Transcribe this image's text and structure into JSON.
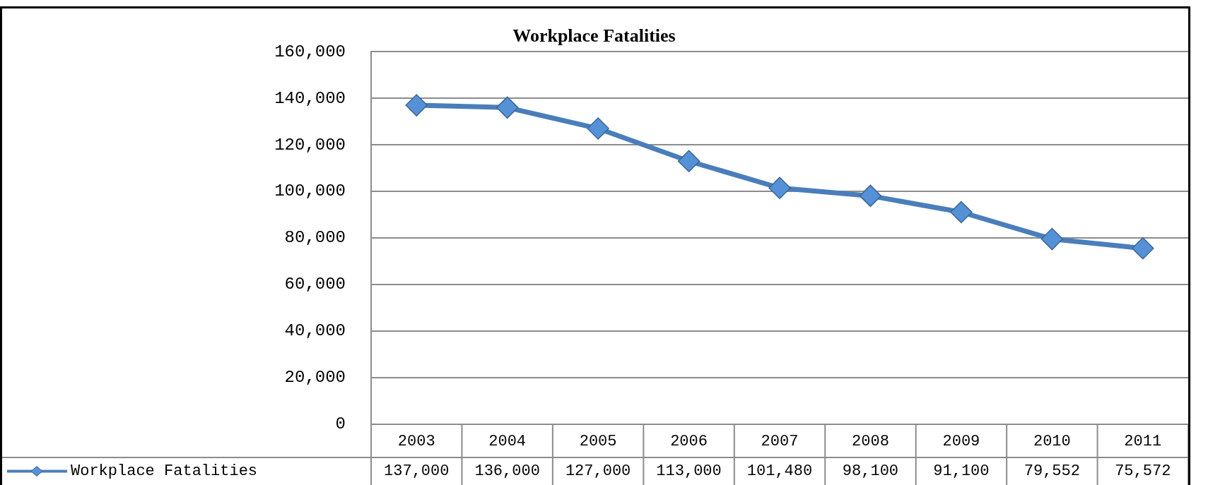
{
  "chart_data": {
    "type": "line",
    "title": "Workplace Fatalities",
    "categories": [
      "2003",
      "2004",
      "2005",
      "2006",
      "2007",
      "2008",
      "2009",
      "2010",
      "2011"
    ],
    "series": [
      {
        "name": "Workplace Fatalities",
        "color": "#4a7ebb",
        "values": [
          137000,
          136000,
          127000,
          113000,
          101480,
          98100,
          91100,
          79552,
          75572
        ],
        "value_labels": [
          "137,000",
          "136,000",
          "127,000",
          "113,000",
          "101,480",
          "98,100",
          "91,100",
          "79,552",
          "75,572"
        ]
      }
    ],
    "ylim": [
      0,
      160000
    ],
    "yticks": [
      0,
      {
        "value": 20000,
        "label": "20,000"
      },
      {
        "value": 40000,
        "label": "40,000"
      },
      {
        "value": 60000,
        "label": "60,000"
      },
      {
        "value": 80000,
        "label": "80,000"
      },
      {
        "value": 100000,
        "label": "100,000"
      },
      {
        "value": 120000,
        "label": "120,000"
      },
      {
        "value": 140000,
        "label": "140,000"
      },
      {
        "value": 160000,
        "label": "160,000"
      }
    ],
    "grid": "y",
    "legend": "bottom left",
    "marker": "diamond"
  }
}
